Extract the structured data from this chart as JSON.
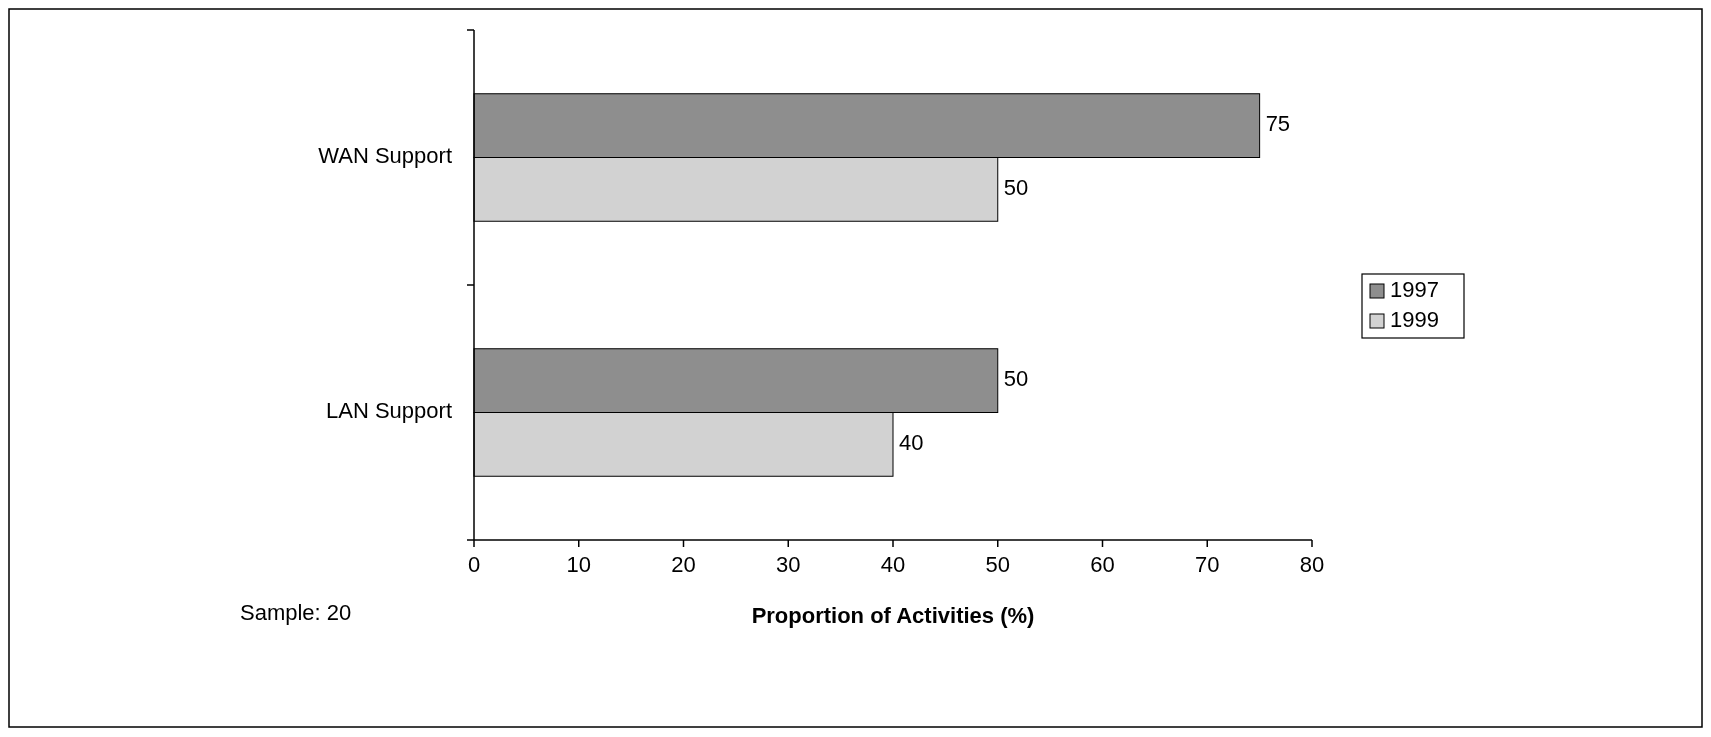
{
  "chart_data": {
    "type": "bar",
    "orientation": "horizontal",
    "categories": [
      "WAN Support",
      "LAN Support"
    ],
    "series": [
      {
        "name": "1997",
        "color": "#8e8e8e",
        "values": [
          75,
          50
        ]
      },
      {
        "name": "1999",
        "color": "#d2d2d2",
        "values": [
          50,
          40
        ]
      }
    ],
    "xlim": [
      0,
      80
    ],
    "xticks": [
      0,
      10,
      20,
      30,
      40,
      50,
      60,
      70,
      80
    ],
    "xlabel": "Proportion of Activities (%)",
    "data_labels": true,
    "legend": "right",
    "grid": false,
    "annotations": [
      "Sample: 20"
    ]
  }
}
